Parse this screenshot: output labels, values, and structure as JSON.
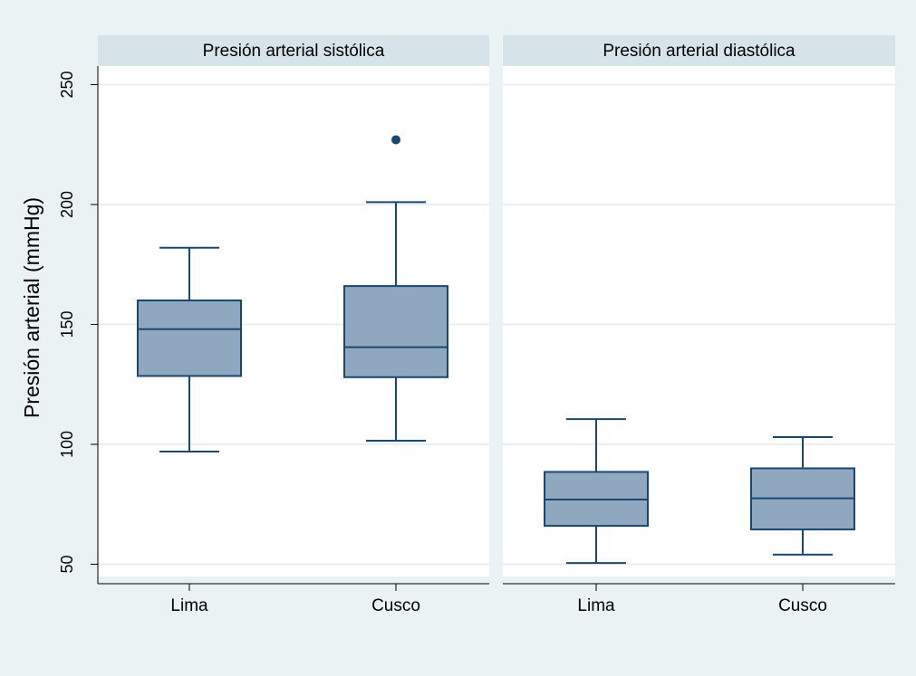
{
  "chart_data": {
    "type": "boxplot",
    "ylabel": "Presión arterial (mmHg)",
    "yticks": [
      50,
      100,
      150,
      200,
      250
    ],
    "ylim": [
      45,
      262
    ],
    "grid": true,
    "colors": {
      "background": "#eaf2f3",
      "panel": "#ffffff",
      "panel_header": "#d6e4ea",
      "grid": "#e4ecee",
      "box_fill": "#90a8bf",
      "box_stroke": "#1a476f",
      "outlier": "#1a476f"
    },
    "panels": [
      {
        "title": "Presión arterial sistólica",
        "categories": [
          "Lima",
          "Cusco"
        ],
        "boxes": [
          {
            "category": "Lima",
            "whisker_low": 97,
            "q1": 128.5,
            "median": 148,
            "q3": 160,
            "whisker_high": 182,
            "outliers": []
          },
          {
            "category": "Cusco",
            "whisker_low": 101.5,
            "q1": 128,
            "median": 140.5,
            "q3": 166,
            "whisker_high": 201,
            "outliers": [
              227
            ]
          }
        ]
      },
      {
        "title": "Presión arterial diastólica",
        "categories": [
          "Lima",
          "Cusco"
        ],
        "boxes": [
          {
            "category": "Lima",
            "whisker_low": 50.5,
            "q1": 66,
            "median": 77,
            "q3": 88.5,
            "whisker_high": 110.5,
            "outliers": []
          },
          {
            "category": "Cusco",
            "whisker_low": 54,
            "q1": 64.5,
            "median": 77.5,
            "q3": 90,
            "whisker_high": 103,
            "outliers": []
          }
        ]
      }
    ]
  }
}
